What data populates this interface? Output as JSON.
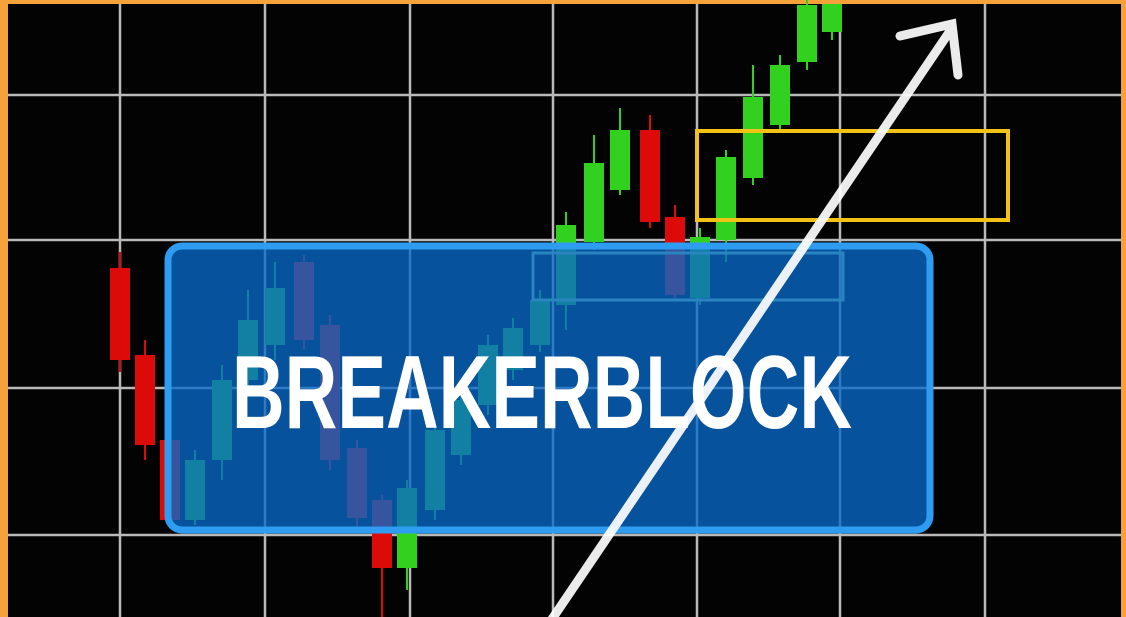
{
  "title": "BREAKERBLOCK"
}
